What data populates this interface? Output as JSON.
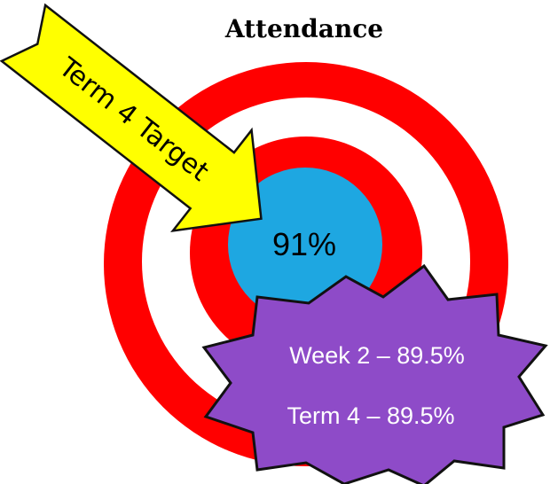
{
  "title": "Attendance",
  "arrow_label": "Term 4 Target",
  "center_value": "91%",
  "badge": {
    "lines": [
      "Week 2  – 89.5%",
      "Term 4 – 89.5%"
    ]
  }
}
